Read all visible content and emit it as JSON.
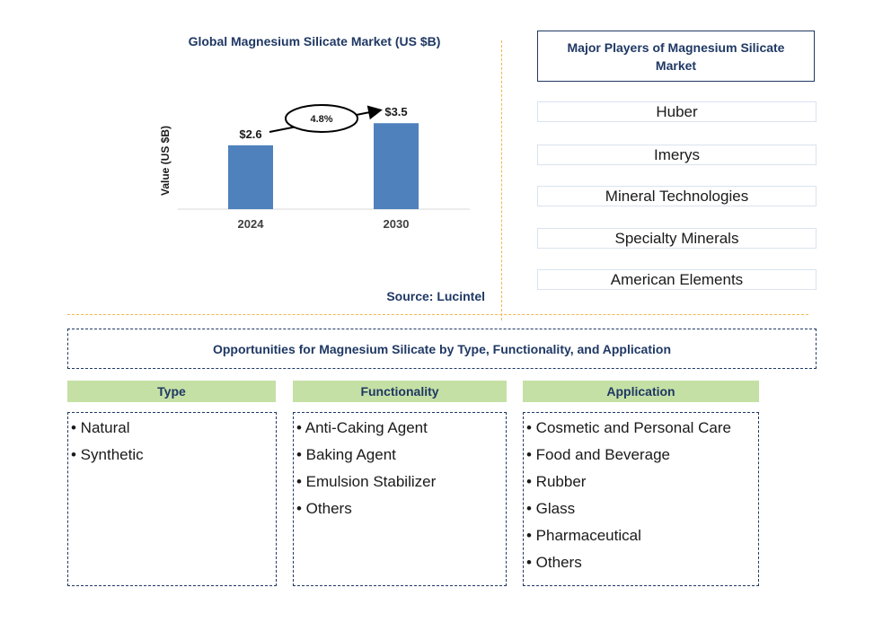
{
  "chart_data": {
    "type": "bar",
    "title": "Global Magnesium Silicate Market (US $B)",
    "ylabel": "Value (US $B)",
    "xlabel": "",
    "categories": [
      "2024",
      "2030"
    ],
    "values": [
      2.6,
      3.5
    ],
    "value_labels": [
      "$2.6",
      "$3.5"
    ],
    "cagr_label": "4.8%",
    "ylim": [
      0,
      4.0
    ],
    "grid": false,
    "bar_color": "#4f81bd"
  },
  "source": "Source: Lucintel",
  "players": {
    "title": "Major Players of Magnesium Silicate Market",
    "items": [
      "Huber",
      "Imerys",
      "Mineral Technologies",
      "Specialty Minerals",
      "American Elements"
    ]
  },
  "opportunities": {
    "title": "Opportunities for Magnesium Silicate by Type, Functionality, and Application",
    "categories": [
      {
        "name": "Type",
        "items": [
          "• Natural",
          "• Synthetic"
        ]
      },
      {
        "name": "Functionality",
        "items": [
          "• Anti-Caking Agent",
          "• Baking Agent",
          "• Emulsion Stabilizer",
          "• Others"
        ]
      },
      {
        "name": "Application",
        "items": [
          "• Cosmetic and Personal Care",
          "• Food and Beverage",
          "• Rubber",
          "• Glass",
          "• Pharmaceutical",
          "• Others"
        ]
      }
    ]
  },
  "colors": {
    "navy": "#1f3864",
    "category_header": "#c5e0a5",
    "separator": "#f2b84b"
  }
}
